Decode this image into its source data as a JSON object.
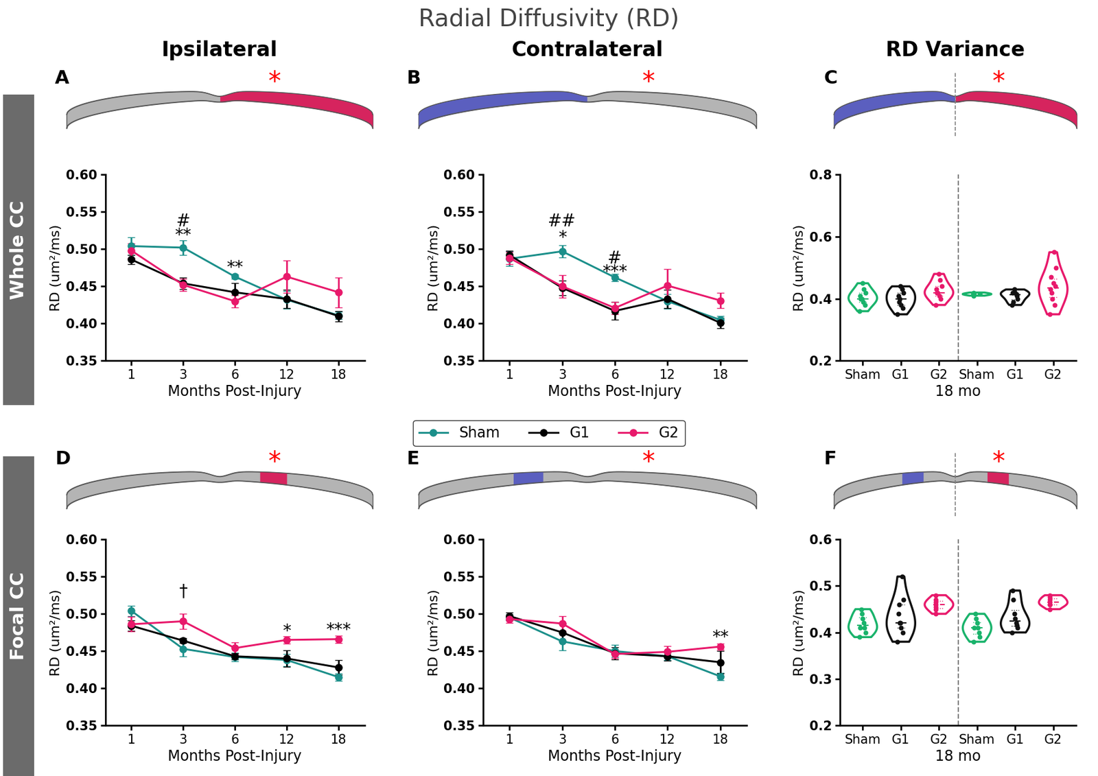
{
  "title": "Radial Diffusivity (RD)",
  "columns": [
    "Ipsilateral",
    "Contralateral",
    "RD Variance"
  ],
  "rows": [
    "Whole CC",
    "Focal CC"
  ],
  "injury_mark": "*",
  "legend": "upper center",
  "chart_data": [
    {
      "panel": "A",
      "type": "line",
      "x_label": "Months Post-Injury",
      "y_label": "RD (um²/ms)",
      "categories": [
        "1",
        "3",
        "6",
        "12",
        "18"
      ],
      "marker": "o",
      "series": [
        {
          "name": "Sham",
          "color": "#1b8f8a",
          "values": [
            0.504,
            0.502,
            0.463,
            0.432,
            0.411
          ],
          "errors": [
            0.012,
            0.01,
            0.003,
            0.012,
            0.005
          ]
        },
        {
          "name": "G1",
          "color": "#000000",
          "values": [
            0.486,
            0.454,
            0.442,
            0.433,
            0.41
          ],
          "errors": [
            0.006,
            0.008,
            0.012,
            0.012,
            0.007
          ]
        },
        {
          "name": "G2",
          "color": "#e8196b",
          "values": [
            0.498,
            0.452,
            0.43,
            0.463,
            0.442
          ],
          "errors": [
            0.01,
            0.008,
            0.008,
            0.022,
            0.02
          ]
        }
      ],
      "ylim": [
        0.35,
        0.6
      ],
      "yticks": [
        0.35,
        {
          "value": 0.4,
          "label": "0.40"
        },
        0.45,
        {
          "value": 0.5,
          "label": "0.50"
        },
        0.55,
        {
          "value": 0.6,
          "label": "0.60"
        }
      ],
      "annotations": [
        {
          "text": "#",
          "x": "3",
          "y": 0.537
        },
        {
          "text": "**",
          "x": "3",
          "y": 0.518
        },
        {
          "text": "**",
          "x": "6",
          "y": 0.475
        }
      ]
    },
    {
      "panel": "B",
      "type": "line",
      "x_label": "Months Post-Injury",
      "y_label": "RD (um²/ms)",
      "categories": [
        "1",
        "3",
        "6",
        "12",
        "18"
      ],
      "marker": "o",
      "series": [
        {
          "name": "Sham",
          "color": "#1b8f8a",
          "values": [
            0.487,
            0.497,
            0.462,
            0.43,
            0.405
          ],
          "errors": [
            0.01,
            0.008,
            0.005,
            0.01,
            0.005
          ]
        },
        {
          "name": "G1",
          "color": "#000000",
          "values": [
            0.492,
            0.448,
            0.417,
            0.433,
            0.401
          ],
          "errors": [
            0.006,
            0.01,
            0.012,
            0.012,
            0.007
          ]
        },
        {
          "name": "G2",
          "color": "#e8196b",
          "values": [
            0.488,
            0.45,
            0.421,
            0.451,
            0.431
          ],
          "errors": [
            0.008,
            0.015,
            0.008,
            0.022,
            0.01
          ]
        }
      ],
      "ylim": [
        0.35,
        0.6
      ],
      "yticks": [
        0.35,
        {
          "value": 0.4,
          "label": "0.40"
        },
        0.45,
        {
          "value": 0.5,
          "label": "0.50"
        },
        0.55,
        {
          "value": 0.6,
          "label": "0.60"
        }
      ],
      "annotations": [
        {
          "text": "##",
          "x": "3",
          "y": 0.537
        },
        {
          "text": "*",
          "x": "3",
          "y": 0.515
        },
        {
          "text": "#",
          "x": "6",
          "y": 0.487
        },
        {
          "text": "***",
          "x": "6",
          "y": 0.469
        }
      ]
    },
    {
      "panel": "C",
      "type": "violin",
      "x_label": "18 mo",
      "y_label": "RD (um²/ms)",
      "categories": [
        "Sham",
        "G1",
        "G2",
        "Sham",
        "G1",
        "G2"
      ],
      "colors": [
        "#19b36b",
        "#111111",
        "#e8196b",
        "#19b36b",
        "#111111",
        "#e8196b"
      ],
      "values": [
        [
          0.36,
          0.38,
          0.39,
          0.4,
          0.41,
          0.42,
          0.43,
          0.45,
          0.4
        ],
        [
          0.35,
          0.37,
          0.38,
          0.4,
          0.41,
          0.42,
          0.43,
          0.44,
          0.39
        ],
        [
          0.38,
          0.4,
          0.41,
          0.42,
          0.43,
          0.44,
          0.46,
          0.48,
          0.42
        ],
        [
          0.41,
          0.412,
          0.415,
          0.418,
          0.42,
          0.414,
          0.416
        ],
        [
          0.38,
          0.4,
          0.41,
          0.415,
          0.42,
          0.43,
          0.39,
          0.42
        ],
        [
          0.35,
          0.38,
          0.4,
          0.43,
          0.44,
          0.45,
          0.47,
          0.5,
          0.55,
          0.42
        ]
      ],
      "ylim": [
        0.2,
        0.8
      ],
      "yticks": [
        0.2,
        0.4,
        0.6,
        0.8
      ]
    },
    {
      "panel": "D",
      "type": "line",
      "x_label": "Months Post-Injury",
      "y_label": "RD (um²/ms)",
      "categories": [
        "1",
        "3",
        "6",
        "12",
        "18"
      ],
      "marker": "o",
      "series": [
        {
          "name": "Sham",
          "color": "#1b8f8a",
          "values": [
            0.504,
            0.453,
            0.442,
            0.438,
            0.415
          ],
          "errors": [
            0.007,
            0.01,
            0.006,
            0.008,
            0.005
          ]
        },
        {
          "name": "G1",
          "color": "#000000",
          "values": [
            0.484,
            0.464,
            0.443,
            0.44,
            0.428
          ],
          "errors": [
            0.007,
            0.003,
            0.004,
            0.011,
            0.01
          ]
        },
        {
          "name": "G2",
          "color": "#e8196b",
          "values": [
            0.486,
            0.49,
            0.454,
            0.465,
            0.466
          ],
          "errors": [
            0.01,
            0.01,
            0.008,
            0.005,
            0.005
          ]
        }
      ],
      "ylim": [
        0.35,
        0.6
      ],
      "yticks": [
        0.35,
        {
          "value": 0.4,
          "label": "0.40"
        },
        0.45,
        {
          "value": 0.5,
          "label": "0.50"
        },
        0.55,
        {
          "value": 0.6,
          "label": "0.60"
        }
      ],
      "annotations": [
        {
          "text": "†",
          "x": "3",
          "y": 0.53
        },
        {
          "text": "*",
          "x": "12",
          "y": 0.476
        },
        {
          "text": "***",
          "x": "18",
          "y": 0.478
        }
      ]
    },
    {
      "panel": "E",
      "type": "line",
      "x_label": "Months Post-Injury",
      "y_label": "RD (um²/ms)",
      "categories": [
        "1",
        "3",
        "6",
        "12",
        "18"
      ],
      "marker": "o",
      "series": [
        {
          "name": "Sham",
          "color": "#1b8f8a",
          "values": [
            0.495,
            0.463,
            0.45,
            0.443,
            0.416
          ],
          "errors": [
            0.004,
            0.012,
            0.008,
            0.005,
            0.005
          ]
        },
        {
          "name": "G1",
          "color": "#000000",
          "values": [
            0.497,
            0.475,
            0.447,
            0.443,
            0.435
          ],
          "errors": [
            0.005,
            0.012,
            0.008,
            0.006,
            0.015
          ]
        },
        {
          "name": "G2",
          "color": "#e8196b",
          "values": [
            0.493,
            0.487,
            0.446,
            0.449,
            0.456
          ],
          "errors": [
            0.005,
            0.01,
            0.006,
            0.008,
            0.004
          ]
        }
      ],
      "ylim": [
        0.35,
        0.6
      ],
      "yticks": [
        0.35,
        {
          "value": 0.4,
          "label": "0.40"
        },
        0.45,
        {
          "value": 0.5,
          "label": "0.50"
        },
        0.55,
        {
          "value": 0.6,
          "label": "0.60"
        }
      ],
      "annotations": [
        {
          "text": "**",
          "x": "18",
          "y": 0.468
        }
      ]
    },
    {
      "panel": "F",
      "type": "violin",
      "x_label": "18 mo",
      "y_label": "RD (um²/ms)",
      "categories": [
        "Sham",
        "G1",
        "G2",
        "Sham",
        "G1",
        "G2"
      ],
      "colors": [
        "#19b36b",
        "#111111",
        "#e8196b",
        "#19b36b",
        "#111111",
        "#e8196b"
      ],
      "values": [
        [
          0.39,
          0.4,
          0.41,
          0.42,
          0.43,
          0.44,
          0.45,
          0.41
        ],
        [
          0.38,
          0.4,
          0.41,
          0.42,
          0.44,
          0.47,
          0.52,
          0.42,
          0.46
        ],
        [
          0.44,
          0.45,
          0.455,
          0.46,
          0.465,
          0.47,
          0.48
        ],
        [
          0.38,
          0.39,
          0.4,
          0.41,
          0.42,
          0.43,
          0.44,
          0.41
        ],
        [
          0.4,
          0.41,
          0.415,
          0.42,
          0.43,
          0.44,
          0.47,
          0.49
        ],
        [
          0.45,
          0.46,
          0.465,
          0.47,
          0.475,
          0.48,
          0.46
        ]
      ],
      "ylim": [
        0.2,
        0.6
      ],
      "yticks": [
        0.2,
        0.3,
        0.4,
        0.5,
        0.6
      ]
    }
  ]
}
